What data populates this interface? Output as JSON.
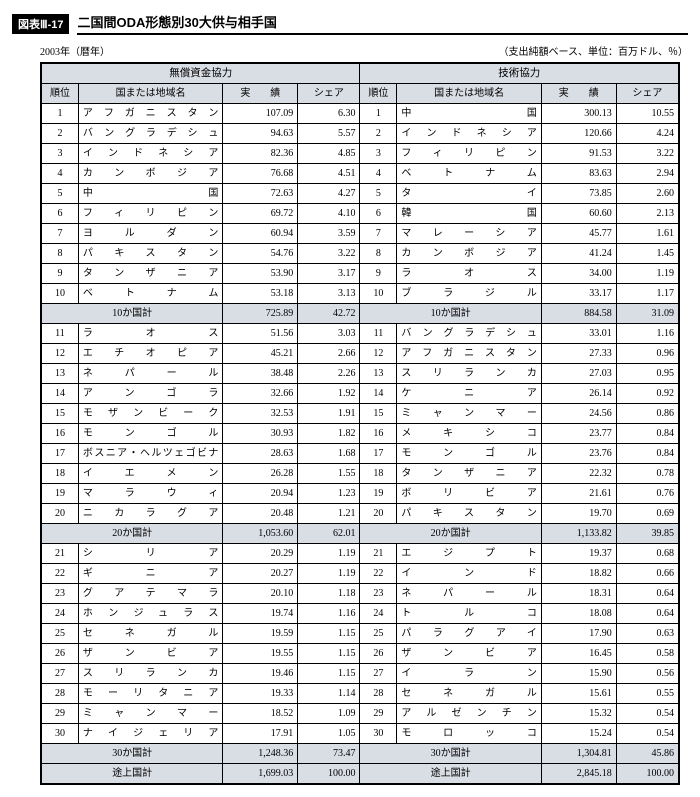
{
  "header": {
    "badge": "図表Ⅲ-17",
    "title": "二国間ODA形態別30大供与相手国",
    "year_note": "2003年（暦年）",
    "unit_note": "（支出純額ベース、単位：百万ドル、％）"
  },
  "columns": {
    "rank": "順位",
    "country": "国または地域名",
    "actual": "実　　績",
    "share": "シェア"
  },
  "left": {
    "group_title": "無償資金協力",
    "rows1": [
      {
        "rank": 1,
        "country": "アフガニスタン",
        "val": "107.09",
        "share": "6.30"
      },
      {
        "rank": 2,
        "country": "バングラデシュ",
        "val": "94.63",
        "share": "5.57"
      },
      {
        "rank": 3,
        "country": "インドネシア",
        "val": "82.36",
        "share": "4.85"
      },
      {
        "rank": 4,
        "country": "カンボジア",
        "val": "76.68",
        "share": "4.51"
      },
      {
        "rank": 5,
        "country": "中国",
        "val": "72.63",
        "share": "4.27"
      },
      {
        "rank": 6,
        "country": "フィリピン",
        "val": "69.72",
        "share": "4.10"
      },
      {
        "rank": 7,
        "country": "ヨルダン",
        "val": "60.94",
        "share": "3.59"
      },
      {
        "rank": 8,
        "country": "パキスタン",
        "val": "54.76",
        "share": "3.22"
      },
      {
        "rank": 9,
        "country": "タンザニア",
        "val": "53.90",
        "share": "3.17"
      },
      {
        "rank": 10,
        "country": "ベトナム",
        "val": "53.18",
        "share": "3.13"
      }
    ],
    "sub10": {
      "label": "10か国計",
      "val": "725.89",
      "share": "42.72"
    },
    "rows2": [
      {
        "rank": 11,
        "country": "ラオス",
        "val": "51.56",
        "share": "3.03"
      },
      {
        "rank": 12,
        "country": "エチオピア",
        "val": "45.21",
        "share": "2.66"
      },
      {
        "rank": 13,
        "country": "ネパール",
        "val": "38.48",
        "share": "2.26"
      },
      {
        "rank": 14,
        "country": "アンゴラ",
        "val": "32.66",
        "share": "1.92"
      },
      {
        "rank": 15,
        "country": "モザンビーク",
        "val": "32.53",
        "share": "1.91"
      },
      {
        "rank": 16,
        "country": "モンゴル",
        "val": "30.93",
        "share": "1.82"
      },
      {
        "rank": 17,
        "country": "ボスニア・ヘルツェゴビナ",
        "val": "28.63",
        "share": "1.68"
      },
      {
        "rank": 18,
        "country": "イエメン",
        "val": "26.28",
        "share": "1.55"
      },
      {
        "rank": 19,
        "country": "マラウィ",
        "val": "20.94",
        "share": "1.23"
      },
      {
        "rank": 20,
        "country": "ニカラグア",
        "val": "20.48",
        "share": "1.21"
      }
    ],
    "sub20": {
      "label": "20か国計",
      "val": "1,053.60",
      "share": "62.01"
    },
    "rows3": [
      {
        "rank": 21,
        "country": "シリア",
        "val": "20.29",
        "share": "1.19"
      },
      {
        "rank": 22,
        "country": "ギニア",
        "val": "20.27",
        "share": "1.19"
      },
      {
        "rank": 23,
        "country": "グアテマラ",
        "val": "20.10",
        "share": "1.18"
      },
      {
        "rank": 24,
        "country": "ホンジュラス",
        "val": "19.74",
        "share": "1.16"
      },
      {
        "rank": 25,
        "country": "セネガル",
        "val": "19.59",
        "share": "1.15"
      },
      {
        "rank": 26,
        "country": "ザンビア",
        "val": "19.55",
        "share": "1.15"
      },
      {
        "rank": 27,
        "country": "スリランカ",
        "val": "19.46",
        "share": "1.15"
      },
      {
        "rank": 28,
        "country": "モーリタニア",
        "val": "19.33",
        "share": "1.14"
      },
      {
        "rank": 29,
        "country": "ミャンマー",
        "val": "18.52",
        "share": "1.09"
      },
      {
        "rank": 30,
        "country": "ナイジェリア",
        "val": "17.91",
        "share": "1.05"
      }
    ],
    "sub30": {
      "label": "30か国計",
      "val": "1,248.36",
      "share": "73.47"
    },
    "total": {
      "label": "途上国計",
      "val": "1,699.03",
      "share": "100.00"
    }
  },
  "right": {
    "group_title": "技術協力",
    "rows1": [
      {
        "rank": 1,
        "country": "中国",
        "val": "300.13",
        "share": "10.55"
      },
      {
        "rank": 2,
        "country": "インドネシア",
        "val": "120.66",
        "share": "4.24"
      },
      {
        "rank": 3,
        "country": "フィリピン",
        "val": "91.53",
        "share": "3.22"
      },
      {
        "rank": 4,
        "country": "ベトナム",
        "val": "83.63",
        "share": "2.94"
      },
      {
        "rank": 5,
        "country": "タイ",
        "val": "73.85",
        "share": "2.60"
      },
      {
        "rank": 6,
        "country": "韓国",
        "val": "60.60",
        "share": "2.13"
      },
      {
        "rank": 7,
        "country": "マレーシア",
        "val": "45.77",
        "share": "1.61"
      },
      {
        "rank": 8,
        "country": "カンボジア",
        "val": "41.24",
        "share": "1.45"
      },
      {
        "rank": 9,
        "country": "ラオス",
        "val": "34.00",
        "share": "1.19"
      },
      {
        "rank": 10,
        "country": "ブラジル",
        "val": "33.17",
        "share": "1.17"
      }
    ],
    "sub10": {
      "label": "10か国計",
      "val": "884.58",
      "share": "31.09"
    },
    "rows2": [
      {
        "rank": 11,
        "country": "バングラデシュ",
        "val": "33.01",
        "share": "1.16"
      },
      {
        "rank": 12,
        "country": "アフガニスタン",
        "val": "27.33",
        "share": "0.96"
      },
      {
        "rank": 13,
        "country": "スリランカ",
        "val": "27.03",
        "share": "0.95"
      },
      {
        "rank": 14,
        "country": "ケニア",
        "val": "26.14",
        "share": "0.92"
      },
      {
        "rank": 15,
        "country": "ミャンマー",
        "val": "24.56",
        "share": "0.86"
      },
      {
        "rank": 16,
        "country": "メキシコ",
        "val": "23.77",
        "share": "0.84"
      },
      {
        "rank": 17,
        "country": "モンゴル",
        "val": "23.76",
        "share": "0.84"
      },
      {
        "rank": 18,
        "country": "タンザニア",
        "val": "22.32",
        "share": "0.78"
      },
      {
        "rank": 19,
        "country": "ボリビア",
        "val": "21.61",
        "share": "0.76"
      },
      {
        "rank": 20,
        "country": "パキスタン",
        "val": "19.70",
        "share": "0.69"
      }
    ],
    "sub20": {
      "label": "20か国計",
      "val": "1,133.82",
      "share": "39.85"
    },
    "rows3": [
      {
        "rank": 21,
        "country": "エジプト",
        "val": "19.37",
        "share": "0.68"
      },
      {
        "rank": 22,
        "country": "インド",
        "val": "18.82",
        "share": "0.66"
      },
      {
        "rank": 23,
        "country": "ネパール",
        "val": "18.31",
        "share": "0.64"
      },
      {
        "rank": 24,
        "country": "トルコ",
        "val": "18.08",
        "share": "0.64"
      },
      {
        "rank": 25,
        "country": "パラグアイ",
        "val": "17.90",
        "share": "0.63"
      },
      {
        "rank": 26,
        "country": "ザンビア",
        "val": "16.45",
        "share": "0.58"
      },
      {
        "rank": 27,
        "country": "イラン",
        "val": "15.90",
        "share": "0.56"
      },
      {
        "rank": 28,
        "country": "セネガル",
        "val": "15.61",
        "share": "0.55"
      },
      {
        "rank": 29,
        "country": "アルゼンチン",
        "val": "15.32",
        "share": "0.54"
      },
      {
        "rank": 30,
        "country": "モロッコ",
        "val": "15.24",
        "share": "0.54"
      }
    ],
    "sub30": {
      "label": "30か国計",
      "val": "1,304.81",
      "share": "45.86"
    },
    "total": {
      "label": "途上国計",
      "val": "2,845.18",
      "share": "100.00"
    }
  }
}
